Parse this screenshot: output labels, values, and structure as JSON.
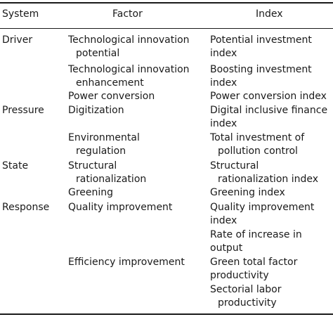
{
  "headers": {
    "system": "System",
    "factor": "Factor",
    "index": "Index"
  },
  "rows": [
    {
      "system": "Driver",
      "factor": [
        "Technological innovation",
        "potential"
      ],
      "index": [
        "Potential investment",
        "index"
      ]
    },
    {
      "system": "",
      "factor": [
        "Technological innovation",
        "enhancement"
      ],
      "index": [
        "Boosting investment",
        "index"
      ]
    },
    {
      "system": "",
      "factor": [
        "Power conversion"
      ],
      "index": [
        "Power conversion index"
      ]
    },
    {
      "system": "Pressure",
      "factor": [
        "Digitization"
      ],
      "index": [
        "Digital inclusive finance",
        "index"
      ]
    },
    {
      "system": "",
      "factor": [
        "Environmental",
        "regulation"
      ],
      "index": [
        "Total investment of",
        "pollution control"
      ]
    },
    {
      "system": "State",
      "factor": [
        "Structural",
        "rationalization"
      ],
      "index": [
        "Structural",
        "rationalization index"
      ]
    },
    {
      "system": "",
      "factor": [
        "Greening"
      ],
      "index": [
        "Greening index"
      ]
    },
    {
      "system": "Response",
      "factor": [
        "Quality improvement"
      ],
      "index": [
        "Quality improvement",
        "index"
      ]
    },
    {
      "system": "",
      "factor": [],
      "index": [
        "Rate of increase in",
        "output"
      ]
    },
    {
      "system": "",
      "factor": [
        "Efficiency improvement"
      ],
      "index": [
        "Green total factor",
        "productivity"
      ]
    },
    {
      "system": "",
      "factor": [],
      "index": [
        "Sectorial labor",
        "productivity"
      ]
    }
  ]
}
